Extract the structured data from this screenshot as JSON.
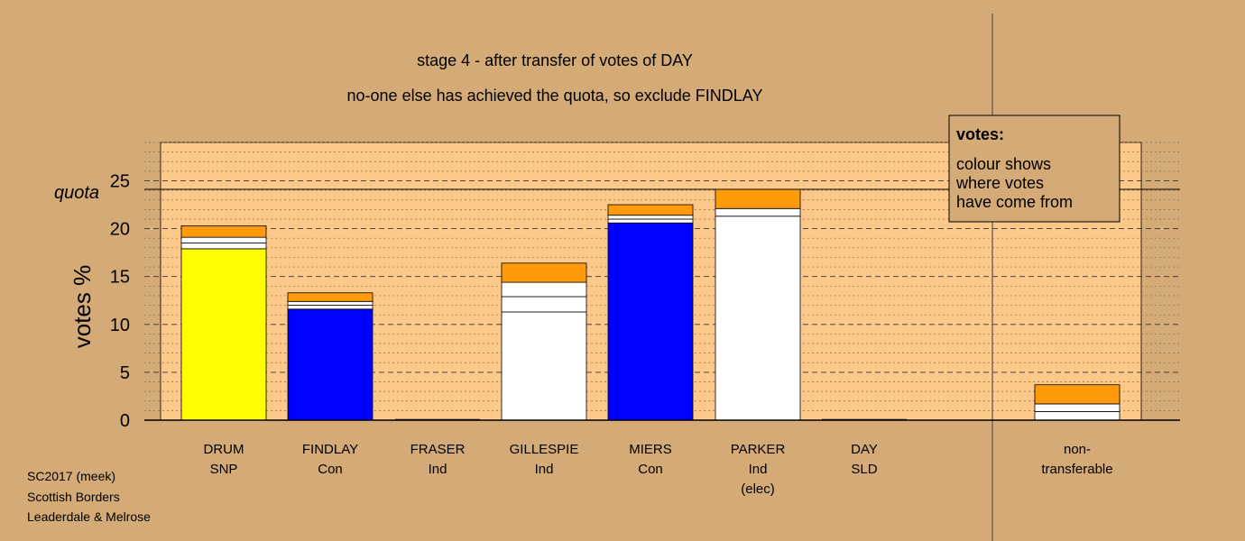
{
  "colors": {
    "background": "#d4aa77",
    "plot_area": "#fcc98a",
    "snp": "#ffff00",
    "con": "#0000ff",
    "ind": "#ffffff",
    "transfer": "#ff9a0a"
  },
  "chart_data": {
    "type": "bar",
    "stacked": true,
    "title": "stage 4 - after transfer of votes of DAY",
    "subtitle": "no-one else has achieved the quota, so exclude FINDLAY",
    "ylabel": "votes %",
    "ylim": [
      0,
      29
    ],
    "yticks": [
      "0",
      "5",
      "10",
      "15",
      "20",
      "25"
    ],
    "quota_label": "quota",
    "quota_value": 24.1,
    "legend": {
      "title": "votes:",
      "lines": [
        "colour shows",
        "where votes",
        "have come from"
      ],
      "placement": "top-right"
    },
    "bars": [
      {
        "name": "DRUM",
        "party": "SNP",
        "extra": "",
        "segments": [
          {
            "value": 17.9,
            "color": "snp"
          },
          {
            "value": 0.6,
            "color": "ind"
          },
          {
            "value": 0.6,
            "color": "ind"
          },
          {
            "value": 1.2,
            "color": "transfer"
          }
        ]
      },
      {
        "name": "FINDLAY",
        "party": "Con",
        "extra": "",
        "segments": [
          {
            "value": 11.6,
            "color": "con"
          },
          {
            "value": 0.4,
            "color": "ind"
          },
          {
            "value": 0.4,
            "color": "ind"
          },
          {
            "value": 0.9,
            "color": "transfer"
          }
        ]
      },
      {
        "name": "FRASER",
        "party": "Ind",
        "extra": "",
        "segments": []
      },
      {
        "name": "GILLESPIE",
        "party": "Ind",
        "extra": "",
        "segments": [
          {
            "value": 11.3,
            "color": "ind"
          },
          {
            "value": 1.6,
            "color": "ind"
          },
          {
            "value": 1.5,
            "color": "ind"
          },
          {
            "value": 2.0,
            "color": "transfer"
          }
        ]
      },
      {
        "name": "MIERS",
        "party": "Con",
        "extra": "",
        "segments": [
          {
            "value": 20.6,
            "color": "con"
          },
          {
            "value": 0.4,
            "color": "ind"
          },
          {
            "value": 0.4,
            "color": "ind"
          },
          {
            "value": 1.1,
            "color": "transfer"
          }
        ]
      },
      {
        "name": "PARKER",
        "party": "Ind",
        "extra": "(elec)",
        "segments": [
          {
            "value": 21.3,
            "color": "ind"
          },
          {
            "value": 0.8,
            "color": "ind"
          },
          {
            "value": 2.0,
            "color": "transfer"
          }
        ]
      },
      {
        "name": "DAY",
        "party": "SLD",
        "extra": "",
        "segments": []
      },
      {
        "name": "non-",
        "party": "transferable",
        "extra": "",
        "segments": [
          {
            "value": 0.9,
            "color": "ind"
          },
          {
            "value": 0.8,
            "color": "ind"
          },
          {
            "value": 2.0,
            "color": "transfer"
          }
        ]
      }
    ],
    "grid": true
  },
  "footer": {
    "line1": "SC2017 (meek)",
    "line2": "Scottish Borders",
    "line3": "Leaderdale & Melrose"
  }
}
